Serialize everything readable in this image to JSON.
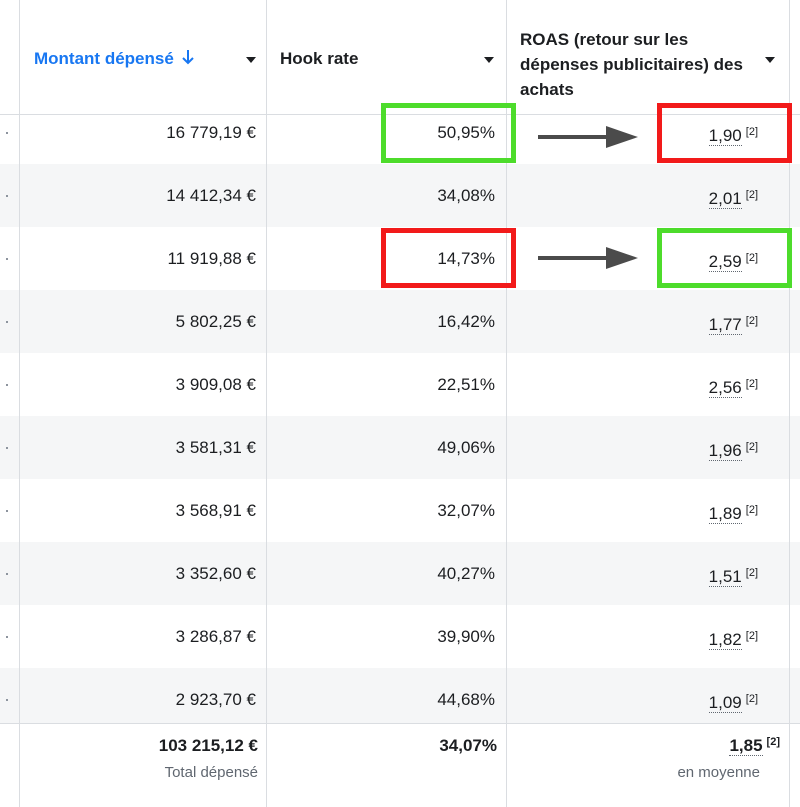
{
  "columns": [
    {
      "label": "Montant dépensé",
      "sort_icon": "arrow-down-icon",
      "sorted": true
    },
    {
      "label": "Hook rate",
      "sorted": false
    },
    {
      "label": "ROAS (retour sur les dépenses publicitaires) des achats",
      "sorted": false
    }
  ],
  "rows": [
    {
      "spend": "16 779,19 €",
      "hook": "50,95%",
      "roas": "1,90",
      "note": "[2]"
    },
    {
      "spend": "14 412,34 €",
      "hook": "34,08%",
      "roas": "2,01",
      "note": "[2]"
    },
    {
      "spend": "11 919,88 €",
      "hook": "14,73%",
      "roas": "2,59",
      "note": "[2]"
    },
    {
      "spend": "5 802,25 €",
      "hook": "16,42%",
      "roas": "1,77",
      "note": "[2]"
    },
    {
      "spend": "3 909,08 €",
      "hook": "22,51%",
      "roas": "2,56",
      "note": "[2]"
    },
    {
      "spend": "3 581,31 €",
      "hook": "49,06%",
      "roas": "1,96",
      "note": "[2]"
    },
    {
      "spend": "3 568,91 €",
      "hook": "32,07%",
      "roas": "1,89",
      "note": "[2]"
    },
    {
      "spend": "3 352,60 €",
      "hook": "40,27%",
      "roas": "1,51",
      "note": "[2]"
    },
    {
      "spend": "3 286,87 €",
      "hook": "39,90%",
      "roas": "1,82",
      "note": "[2]"
    },
    {
      "spend": "2 923,70 €",
      "hook": "44,68%",
      "roas": "1,09",
      "note": "[2]"
    }
  ],
  "totals": {
    "spend": "103 215,12 €",
    "spend_label": "Total dépensé",
    "hook": "34,07%",
    "roas": "1,85",
    "roas_note": "[2]",
    "roas_label": "en moyenne"
  },
  "annotations": {
    "green_color": "#4ddc2b",
    "red_color": "#f21a1a",
    "arrow_color": "#4b4b4b"
  }
}
